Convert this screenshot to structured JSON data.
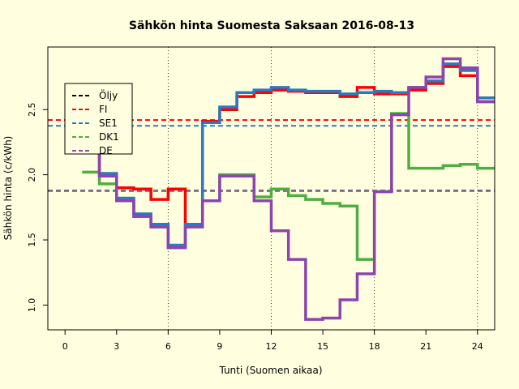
{
  "chart_data": {
    "type": "line",
    "title": "Sähkön hinta Suomesta Saksaan 2016-08-13",
    "xlabel": "Tunti (Suomen aikaa)",
    "ylabel": "Sähkön hinta (c/kWh)",
    "xlim": [
      -1,
      25
    ],
    "ylim": [
      0.81,
      2.98
    ],
    "xticks": [
      0,
      3,
      6,
      9,
      12,
      15,
      18,
      21,
      24
    ],
    "yticks": [
      1.0,
      1.5,
      2.0,
      2.5
    ],
    "ytick_labels": [
      "1.0",
      "1.5",
      "2.0",
      "2.5"
    ],
    "vlines": [
      6,
      12,
      18,
      24
    ],
    "legend_position": "top-left",
    "hours": [
      1,
      2,
      3,
      4,
      5,
      6,
      7,
      8,
      9,
      10,
      11,
      12,
      13,
      14,
      15,
      16,
      17,
      18,
      19,
      20,
      21,
      22,
      23,
      24,
      25
    ],
    "series": [
      {
        "name": "Öljy",
        "color": "#000000",
        "values": [
          2.17,
          2.0,
          1.81,
          1.69,
          1.61,
          1.45,
          1.61,
          2.4,
          2.51,
          2.62,
          2.64,
          2.66,
          2.65,
          2.63,
          2.64,
          2.61,
          2.63,
          2.63,
          2.62,
          2.66,
          2.72,
          2.84,
          2.79,
          2.58
        ]
      },
      {
        "name": "FI",
        "color": "#ff0000",
        "values": [
          2.17,
          1.99,
          1.9,
          1.89,
          1.81,
          1.89,
          1.62,
          2.41,
          2.5,
          2.6,
          2.63,
          2.65,
          2.64,
          2.63,
          2.63,
          2.6,
          2.67,
          2.62,
          2.62,
          2.65,
          2.7,
          2.83,
          2.76,
          2.56
        ]
      },
      {
        "name": "SE1",
        "color": "#2a79c1",
        "values": [
          2.17,
          2.01,
          1.82,
          1.7,
          1.62,
          1.46,
          1.62,
          2.4,
          2.52,
          2.63,
          2.65,
          2.67,
          2.65,
          2.64,
          2.64,
          2.62,
          2.63,
          2.64,
          2.63,
          2.67,
          2.72,
          2.85,
          2.8,
          2.59
        ]
      },
      {
        "name": "DK1",
        "color": "#4caf3f",
        "values": [
          2.02,
          1.93,
          1.8,
          1.68,
          1.6,
          1.44,
          1.6,
          1.8,
          2.0,
          2.0,
          1.83,
          1.89,
          1.84,
          1.81,
          1.78,
          1.76,
          1.35,
          1.87,
          2.47,
          2.05,
          2.05,
          2.07,
          2.08,
          2.05
        ]
      },
      {
        "name": "DE",
        "color": "#8e44ad",
        "values": [
          2.17,
          1.99,
          1.8,
          1.68,
          1.6,
          1.44,
          1.6,
          1.8,
          1.99,
          1.99,
          1.8,
          1.57,
          1.35,
          0.89,
          0.9,
          1.04,
          1.24,
          1.87,
          2.46,
          2.67,
          2.75,
          2.89,
          2.82,
          2.56
        ]
      }
    ],
    "reference_lines": [
      {
        "series": "FI",
        "y": 2.42,
        "color": "#ff0000"
      },
      {
        "series": "SE1",
        "y": 2.375,
        "color": "#2a79c1"
      },
      {
        "series": "DK1",
        "y": 1.88,
        "color": "#4caf3f"
      },
      {
        "series": "DE",
        "y": 1.875,
        "color": "#8e44ad"
      }
    ]
  }
}
